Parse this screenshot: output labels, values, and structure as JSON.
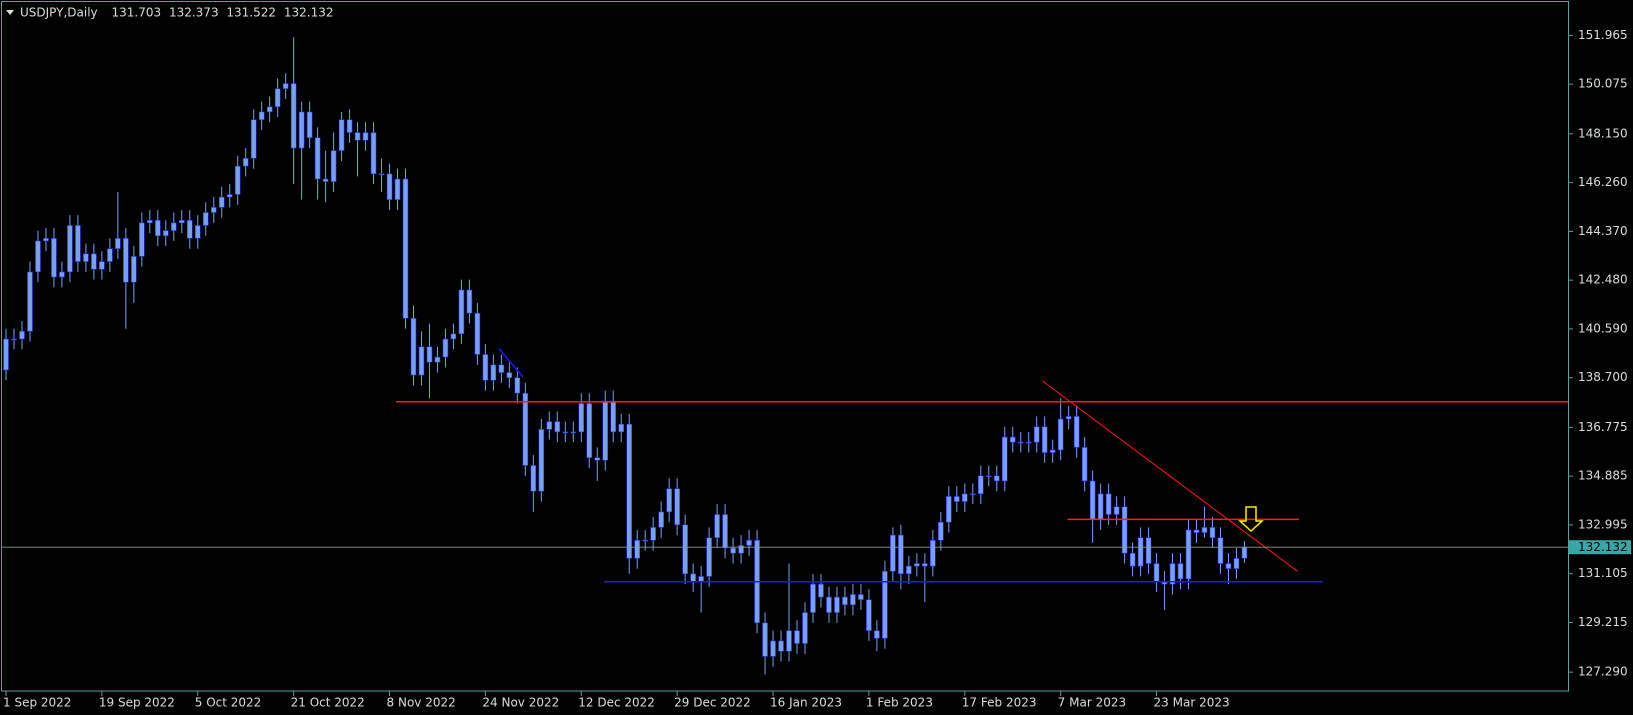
{
  "chart_data": {
    "type": "candlestick",
    "title": "USDJPY,Daily",
    "categories": [
      "1 Sep 2022",
      null,
      null,
      null,
      null,
      null,
      null,
      null,
      null,
      null,
      null,
      null,
      "19 Sep 2022",
      null,
      null,
      null,
      null,
      null,
      null,
      null,
      null,
      null,
      null,
      null,
      "5 Oct 2022",
      null,
      null,
      null,
      null,
      null,
      null,
      null,
      null,
      null,
      null,
      null,
      "21 Oct 2022",
      null,
      null,
      null,
      null,
      null,
      null,
      null,
      null,
      null,
      null,
      null,
      "8 Nov 2022",
      null,
      null,
      null,
      null,
      null,
      null,
      null,
      null,
      null,
      null,
      null,
      "24 Nov 2022",
      null,
      null,
      null,
      null,
      null,
      null,
      null,
      null,
      null,
      null,
      null,
      "12 Dec 2022",
      null,
      null,
      null,
      null,
      null,
      null,
      null,
      null,
      null,
      null,
      null,
      "29 Dec 2022",
      null,
      null,
      null,
      null,
      null,
      null,
      null,
      null,
      null,
      null,
      null,
      "16 Jan 2023",
      null,
      null,
      null,
      null,
      null,
      null,
      null,
      null,
      null,
      null,
      null,
      "1 Feb 2023",
      null,
      null,
      null,
      null,
      null,
      null,
      null,
      null,
      null,
      null,
      null,
      "17 Feb 2023",
      null,
      null,
      null,
      null,
      null,
      null,
      null,
      null,
      null,
      null,
      null,
      "7 Mar 2023",
      null,
      null,
      null,
      null,
      null,
      null,
      null,
      null,
      null,
      null,
      null,
      "23 Mar 2023",
      null,
      null,
      null,
      null,
      null,
      null,
      null,
      null,
      null,
      null,
      null
    ],
    "open": [
      139.0,
      140.2,
      140.2,
      140.5,
      142.8,
      144.0,
      144.1,
      142.6,
      142.8,
      144.6,
      143.2,
      143.5,
      142.9,
      143.2,
      143.7,
      144.1,
      142.4,
      143.4,
      144.7,
      144.8,
      144.2,
      144.4,
      144.7,
      144.8,
      144.1,
      144.6,
      145.1,
      145.3,
      145.7,
      145.8,
      146.9,
      147.2,
      148.7,
      149.0,
      149.2,
      149.9,
      150.1,
      147.6,
      149.0,
      148.0,
      146.4,
      146.3,
      147.5,
      148.7,
      148.2,
      147.9,
      148.2,
      146.6,
      146.6,
      145.6,
      146.4,
      141.0,
      138.8,
      139.9,
      139.3,
      139.5,
      140.2,
      140.4,
      142.1,
      141.2,
      139.6,
      138.6,
      139.2,
      138.9,
      138.7,
      138.1,
      135.3,
      134.3,
      136.7,
      137.0,
      136.6,
      136.6,
      136.6,
      137.7,
      135.6,
      135.5,
      137.8,
      136.6,
      136.9,
      131.7,
      132.4,
      132.4,
      132.9,
      133.5,
      134.4,
      133.0,
      131.1,
      130.8,
      131.0,
      132.5,
      133.4,
      132.1,
      131.9,
      132.2,
      132.4,
      129.2,
      127.9,
      128.5,
      128.1,
      128.9,
      128.4,
      129.6,
      130.7,
      130.2,
      129.6,
      130.2,
      129.9,
      130.3,
      130.1,
      128.9,
      128.6,
      131.2,
      132.6,
      131.1,
      131.4,
      131.5,
      131.4,
      132.4,
      133.1,
      134.1,
      133.9,
      134.2,
      134.2,
      134.9,
      134.9,
      134.7,
      136.4,
      136.2,
      136.2,
      136.2,
      136.8,
      135.8,
      135.9,
      137.1,
      137.2,
      136.0,
      134.7,
      133.2,
      134.2,
      133.4,
      133.7,
      131.9,
      131.4,
      132.5,
      131.5,
      130.8,
      130.7,
      131.5,
      130.9,
      132.8,
      132.7,
      132.9,
      132.5,
      131.5,
      131.3,
      131.703
    ],
    "high": [
      140.6,
      140.6,
      140.9,
      143.2,
      144.4,
      144.5,
      144.5,
      143.2,
      145.0,
      145.0,
      143.9,
      143.9,
      143.6,
      144.1,
      145.9,
      144.5,
      143.8,
      145.1,
      145.2,
      145.2,
      144.8,
      145.1,
      145.2,
      145.2,
      145.0,
      145.5,
      145.7,
      146.1,
      146.2,
      147.3,
      147.6,
      149.1,
      149.4,
      149.6,
      150.3,
      150.5,
      151.9,
      149.4,
      149.4,
      148.4,
      147.5,
      148.2,
      149.0,
      149.1,
      148.6,
      148.6,
      148.6,
      147.2,
      147.0,
      146.8,
      146.8,
      141.5,
      140.5,
      140.8,
      139.9,
      140.6,
      140.8,
      142.5,
      142.5,
      141.6,
      140.0,
      139.6,
      139.6,
      139.3,
      139.1,
      138.5,
      135.7,
      137.1,
      137.4,
      137.4,
      137.0,
      137.0,
      138.1,
      138.1,
      136.0,
      138.2,
      138.2,
      137.3,
      137.3,
      132.8,
      132.8,
      133.3,
      133.9,
      134.8,
      134.8,
      133.4,
      131.5,
      131.4,
      132.9,
      133.8,
      133.8,
      132.5,
      132.6,
      132.8,
      132.8,
      129.6,
      128.9,
      128.9,
      131.5,
      129.3,
      130.0,
      131.1,
      131.1,
      130.6,
      130.6,
      130.6,
      130.7,
      130.7,
      130.5,
      129.3,
      131.6,
      132.9,
      133.0,
      131.8,
      131.9,
      131.9,
      132.8,
      133.5,
      134.5,
      134.5,
      134.6,
      134.6,
      135.3,
      135.3,
      135.3,
      136.8,
      136.8,
      136.6,
      136.6,
      137.2,
      137.2,
      136.3,
      137.9,
      137.6,
      137.6,
      136.4,
      135.1,
      134.6,
      134.6,
      134.1,
      134.1,
      132.3,
      132.9,
      132.9,
      131.9,
      131.2,
      131.9,
      131.9,
      133.2,
      133.2,
      133.7,
      133.3,
      132.9,
      131.9,
      132.1,
      132.373
    ],
    "low": [
      138.6,
      139.8,
      139.8,
      140.1,
      142.4,
      143.6,
      142.2,
      142.2,
      142.4,
      142.8,
      142.8,
      142.5,
      142.5,
      142.8,
      143.3,
      140.6,
      141.6,
      143.0,
      144.3,
      143.8,
      143.8,
      144.0,
      144.3,
      143.7,
      143.7,
      144.2,
      144.7,
      144.9,
      145.3,
      145.4,
      146.5,
      146.8,
      148.3,
      148.6,
      148.8,
      149.5,
      146.2,
      145.6,
      147.6,
      145.6,
      145.5,
      145.9,
      147.1,
      147.8,
      146.5,
      147.5,
      146.2,
      145.9,
      145.2,
      145.2,
      140.6,
      138.4,
      138.4,
      137.9,
      138.9,
      139.1,
      139.8,
      140.0,
      140.8,
      139.2,
      138.2,
      138.2,
      138.5,
      138.3,
      137.7,
      134.9,
      133.5,
      133.9,
      136.3,
      136.2,
      136.2,
      136.2,
      136.2,
      135.2,
      134.7,
      135.1,
      136.2,
      136.2,
      131.1,
      131.3,
      132.0,
      132.0,
      132.5,
      133.1,
      132.6,
      130.7,
      130.4,
      129.6,
      130.6,
      132.1,
      131.7,
      131.5,
      131.5,
      131.8,
      128.8,
      127.2,
      127.5,
      127.7,
      127.7,
      128.0,
      128.0,
      129.2,
      129.8,
      129.2,
      129.2,
      129.5,
      129.5,
      129.7,
      128.5,
      128.1,
      128.2,
      130.8,
      130.5,
      130.7,
      131.0,
      130.0,
      131.0,
      132.0,
      132.7,
      133.5,
      133.5,
      133.8,
      133.8,
      134.5,
      134.3,
      134.3,
      135.8,
      135.8,
      135.8,
      135.8,
      135.4,
      135.4,
      135.5,
      136.7,
      135.6,
      134.3,
      132.3,
      132.8,
      133.0,
      133.0,
      131.5,
      131.0,
      131.0,
      131.1,
      130.4,
      129.7,
      130.3,
      130.5,
      130.5,
      132.3,
      132.5,
      132.1,
      131.1,
      130.7,
      130.9,
      131.522
    ],
    "close": [
      140.2,
      140.2,
      140.5,
      142.8,
      144.0,
      144.1,
      142.6,
      142.8,
      144.6,
      143.2,
      143.5,
      142.9,
      143.2,
      143.7,
      144.1,
      142.4,
      143.4,
      144.7,
      144.8,
      144.2,
      144.4,
      144.7,
      144.8,
      144.1,
      144.6,
      145.1,
      145.3,
      145.7,
      145.8,
      146.9,
      147.2,
      148.7,
      149.0,
      149.2,
      149.9,
      150.1,
      147.6,
      149.0,
      148.0,
      146.4,
      146.3,
      147.5,
      148.7,
      148.2,
      147.9,
      148.2,
      146.6,
      146.6,
      145.6,
      146.4,
      141.0,
      138.8,
      139.9,
      139.3,
      139.5,
      140.2,
      140.4,
      142.1,
      141.2,
      139.6,
      138.6,
      139.2,
      138.9,
      138.7,
      138.1,
      135.3,
      134.3,
      136.7,
      137.0,
      136.6,
      136.6,
      136.6,
      137.7,
      135.6,
      135.5,
      137.8,
      136.6,
      136.9,
      131.7,
      132.4,
      132.4,
      132.9,
      133.5,
      134.4,
      133.0,
      131.1,
      130.8,
      131.0,
      132.5,
      133.4,
      132.1,
      131.9,
      132.2,
      132.4,
      129.2,
      127.9,
      128.5,
      128.1,
      128.9,
      128.4,
      129.6,
      130.7,
      130.2,
      129.6,
      130.2,
      129.9,
      130.3,
      130.1,
      128.9,
      128.6,
      131.2,
      132.6,
      131.1,
      131.4,
      131.5,
      131.4,
      132.4,
      133.1,
      134.1,
      133.9,
      134.2,
      134.2,
      134.9,
      134.9,
      134.7,
      136.4,
      136.2,
      136.2,
      136.2,
      136.8,
      135.8,
      135.9,
      137.1,
      137.2,
      136.0,
      134.7,
      133.2,
      134.2,
      133.4,
      133.7,
      131.9,
      131.4,
      132.5,
      131.5,
      130.8,
      130.7,
      131.5,
      130.9,
      132.8,
      132.7,
      132.9,
      132.5,
      131.5,
      131.3,
      131.7,
      132.132
    ],
    "color": "#7b9ff0",
    "edge_color": "#2233dd",
    "ylim": [
      126.56,
      153.22
    ],
    "yticks": [
      151.965,
      150.075,
      {
        "value": 148.15,
        "label": "148.150"
      },
      {
        "value": 146.26,
        "label": "146.260"
      },
      {
        "value": 144.37,
        "label": "144.370"
      },
      {
        "value": 142.48,
        "label": "142.480"
      },
      {
        "value": 140.59,
        "label": "140.590"
      },
      {
        "value": 138.7,
        "label": "138.700"
      },
      136.775,
      134.885,
      132.995,
      131.105,
      129.215,
      {
        "value": 127.29,
        "label": "127.290"
      }
    ],
    "grid": false
  }
}
